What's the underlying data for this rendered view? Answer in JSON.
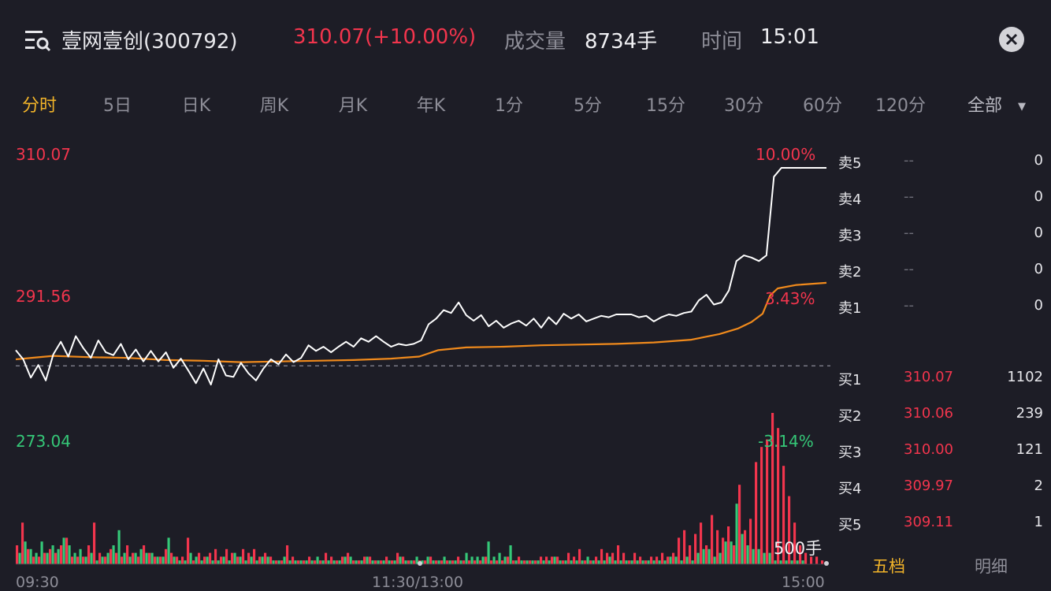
{
  "header": {
    "stock_name": "壹网壹创(300792)",
    "price_change": "310.07(+10.00%)",
    "volume_label": "成交量",
    "volume_value": "8734手",
    "time_label": "时间",
    "time_value": "15:01"
  },
  "tabs": [
    "分时",
    "5日",
    "日K",
    "周K",
    "月K",
    "年K",
    "1分",
    "5分",
    "15分",
    "30分",
    "60分",
    "120分"
  ],
  "active_tab": "分时",
  "tab_all": "全部",
  "price_axis": {
    "high": "310.07",
    "mid": "291.56",
    "low": "273.04",
    "high_pct": "10.00%",
    "mid_pct": "3.43%",
    "low_pct": "-3.14%"
  },
  "volume_unit": "500手",
  "x_ticks": [
    "09:30",
    "11:30/13:00",
    "15:00"
  ],
  "order_book": {
    "sell": [
      {
        "label": "卖5",
        "price": "--",
        "volume": "0"
      },
      {
        "label": "卖4",
        "price": "--",
        "volume": "0"
      },
      {
        "label": "卖3",
        "price": "--",
        "volume": "0"
      },
      {
        "label": "卖2",
        "price": "--",
        "volume": "0"
      },
      {
        "label": "卖1",
        "price": "--",
        "volume": "0"
      }
    ],
    "buy": [
      {
        "label": "买1",
        "price": "310.07",
        "volume": "1102"
      },
      {
        "label": "买2",
        "price": "310.06",
        "volume": "239"
      },
      {
        "label": "买3",
        "price": "310.00",
        "volume": "121"
      },
      {
        "label": "买4",
        "price": "309.97",
        "volume": "2"
      },
      {
        "label": "买5",
        "price": "309.11",
        "volume": "1"
      }
    ]
  },
  "book_tabs": {
    "five": "五档",
    "detail": "明细"
  },
  "colors": {
    "up": "#f2354d",
    "down": "#35c878",
    "active": "#f2b429",
    "price_line": "#ffffff",
    "avg_line": "#f08a1c",
    "background": "#1d1d26"
  },
  "chart_data": {
    "type": "line",
    "x_range": [
      "09:30",
      "15:00"
    ],
    "ylim": [
      273.04,
      310.07
    ],
    "pct_range": [
      -3.14,
      10.0
    ],
    "prev_close": 281.88,
    "series": [
      {
        "points": [
          [
            0,
            284.1
          ],
          [
            4,
            282.8
          ],
          [
            8,
            280.2
          ],
          [
            12,
            282.0
          ],
          [
            16,
            279.8
          ],
          [
            20,
            283.5
          ],
          [
            24,
            285.3
          ],
          [
            28,
            283.2
          ],
          [
            32,
            286.1
          ],
          [
            36,
            284.4
          ],
          [
            40,
            283.0
          ],
          [
            44,
            285.5
          ],
          [
            48,
            283.8
          ],
          [
            52,
            283.4
          ],
          [
            56,
            285.0
          ],
          [
            60,
            282.8
          ],
          [
            64,
            284.2
          ],
          [
            68,
            282.5
          ],
          [
            72,
            284.0
          ],
          [
            76,
            282.5
          ],
          [
            80,
            283.8
          ],
          [
            84,
            281.6
          ],
          [
            88,
            282.9
          ],
          [
            92,
            281.2
          ],
          [
            96,
            279.4
          ],
          [
            100,
            281.5
          ],
          [
            104,
            279.2
          ],
          [
            108,
            282.8
          ],
          [
            112,
            280.5
          ],
          [
            116,
            280.3
          ],
          [
            120,
            282.3
          ],
          [
            124,
            280.8
          ],
          [
            128,
            279.8
          ],
          [
            132,
            281.5
          ],
          [
            136,
            282.8
          ],
          [
            140,
            282.1
          ],
          [
            144,
            283.5
          ],
          [
            148,
            282.4
          ],
          [
            152,
            283.0
          ],
          [
            156,
            284.8
          ],
          [
            160,
            284.0
          ],
          [
            164,
            284.6
          ],
          [
            168,
            283.8
          ],
          [
            172,
            284.6
          ],
          [
            176,
            285.3
          ],
          [
            180,
            284.6
          ],
          [
            184,
            285.8
          ],
          [
            188,
            285.3
          ],
          [
            192,
            286.1
          ],
          [
            196,
            285.3
          ],
          [
            200,
            284.6
          ],
          [
            204,
            285.0
          ],
          [
            208,
            284.8
          ],
          [
            212,
            285.0
          ],
          [
            216,
            285.5
          ],
          [
            220,
            287.8
          ],
          [
            224,
            288.6
          ],
          [
            228,
            289.8
          ],
          [
            232,
            289.4
          ],
          [
            236,
            290.9
          ],
          [
            240,
            289.1
          ],
          [
            244,
            288.3
          ],
          [
            248,
            289.1
          ],
          [
            252,
            287.5
          ],
          [
            256,
            288.3
          ],
          [
            260,
            287.3
          ],
          [
            264,
            287.9
          ],
          [
            268,
            288.3
          ],
          [
            272,
            287.6
          ],
          [
            276,
            288.6
          ],
          [
            280,
            287.3
          ],
          [
            284,
            288.8
          ],
          [
            288,
            287.8
          ],
          [
            292,
            289.3
          ],
          [
            296,
            288.6
          ],
          [
            300,
            289.2
          ],
          [
            304,
            288.2
          ],
          [
            308,
            288.6
          ],
          [
            312,
            289.0
          ],
          [
            316,
            288.8
          ],
          [
            320,
            289.2
          ],
          [
            324,
            289.2
          ],
          [
            328,
            289.2
          ],
          [
            332,
            288.8
          ],
          [
            336,
            289.0
          ],
          [
            340,
            288.2
          ],
          [
            344,
            288.8
          ],
          [
            348,
            289.2
          ],
          [
            352,
            289.0
          ],
          [
            356,
            289.4
          ],
          [
            360,
            289.6
          ],
          [
            364,
            291.2
          ],
          [
            368,
            292.0
          ],
          [
            372,
            290.6
          ],
          [
            376,
            290.9
          ],
          [
            380,
            292.6
          ],
          [
            384,
            296.8
          ],
          [
            388,
            297.6
          ],
          [
            392,
            297.3
          ],
          [
            396,
            296.8
          ],
          [
            400,
            297.6
          ],
          [
            404,
            308.8
          ],
          [
            408,
            310.07
          ],
          [
            432,
            310.07
          ]
        ]
      },
      {
        "points": [
          [
            0,
            282.8
          ],
          [
            20,
            283.3
          ],
          [
            40,
            283.1
          ],
          [
            60,
            283.0
          ],
          [
            80,
            282.7
          ],
          [
            100,
            282.6
          ],
          [
            120,
            282.4
          ],
          [
            140,
            282.5
          ],
          [
            160,
            282.6
          ],
          [
            180,
            282.7
          ],
          [
            200,
            282.9
          ],
          [
            215,
            283.2
          ],
          [
            225,
            284.1
          ],
          [
            240,
            284.5
          ],
          [
            260,
            284.6
          ],
          [
            280,
            284.8
          ],
          [
            300,
            284.9
          ],
          [
            320,
            285.0
          ],
          [
            340,
            285.2
          ],
          [
            360,
            285.6
          ],
          [
            375,
            286.4
          ],
          [
            385,
            287.2
          ],
          [
            392,
            288.1
          ],
          [
            398,
            289.3
          ],
          [
            402,
            291.9
          ],
          [
            406,
            292.9
          ],
          [
            416,
            293.4
          ],
          [
            432,
            293.7
          ]
        ]
      }
    ],
    "volume": [
      {
        "values": [
          5,
          11,
          4,
          2,
          2,
          3,
          4,
          3,
          5,
          7,
          2,
          2,
          2,
          5,
          11,
          3,
          2,
          4,
          3,
          2,
          5,
          3,
          2,
          5,
          3,
          2,
          2,
          4,
          3,
          2,
          2,
          7,
          1,
          3,
          2,
          3,
          4,
          2,
          4,
          3,
          2,
          4,
          3,
          4,
          2,
          3,
          2,
          1,
          1,
          5,
          2,
          1,
          1,
          2,
          1,
          1,
          3,
          2,
          1,
          2,
          3,
          1,
          1,
          2,
          2,
          1,
          1,
          2,
          1,
          3,
          2,
          1,
          1,
          1,
          1,
          2,
          1,
          1,
          1,
          1,
          2,
          1,
          1,
          1,
          1,
          2,
          1,
          1,
          1,
          2,
          1,
          2,
          1,
          1,
          1,
          2,
          2,
          2,
          2,
          1,
          3,
          2,
          4,
          1,
          1,
          2,
          4,
          3,
          3,
          5,
          3,
          1,
          3,
          2,
          1,
          2,
          2,
          3,
          2,
          3,
          7,
          9,
          5,
          8,
          11,
          5,
          13,
          9,
          7,
          10,
          5,
          21,
          9,
          12,
          27,
          31,
          33,
          40,
          36,
          26,
          18,
          11,
          5,
          3,
          2,
          2,
          1
        ]
      },
      {
        "values": [
          3,
          6,
          4,
          3,
          6,
          3,
          5,
          4,
          7,
          5,
          3,
          4,
          2,
          3,
          1,
          2,
          3,
          5,
          9,
          3,
          2,
          3,
          4,
          3,
          3,
          2,
          2,
          7,
          2,
          1,
          1,
          3,
          2,
          1,
          2,
          1,
          1,
          2,
          1,
          3,
          2,
          1,
          2,
          1,
          2,
          2,
          1,
          1,
          2,
          1,
          1,
          1,
          1,
          1,
          2,
          1,
          1,
          1,
          1,
          2,
          2,
          1,
          1,
          2,
          1,
          1,
          1,
          1,
          1,
          2,
          1,
          1,
          2,
          1,
          2,
          1,
          1,
          2,
          1,
          1,
          1,
          3,
          2,
          2,
          2,
          6,
          2,
          3,
          2,
          5,
          1,
          1,
          1,
          1,
          1,
          1,
          1,
          2,
          1,
          1,
          1,
          1,
          1,
          2,
          1,
          1,
          1,
          2,
          1,
          1,
          1,
          1,
          1,
          1,
          1,
          1,
          1,
          1,
          2,
          2,
          1,
          2,
          1,
          3,
          4,
          4,
          2,
          3,
          6,
          6,
          16,
          8,
          5,
          4,
          4,
          3,
          3,
          1,
          1,
          1,
          1,
          1,
          1
        ]
      }
    ]
  }
}
